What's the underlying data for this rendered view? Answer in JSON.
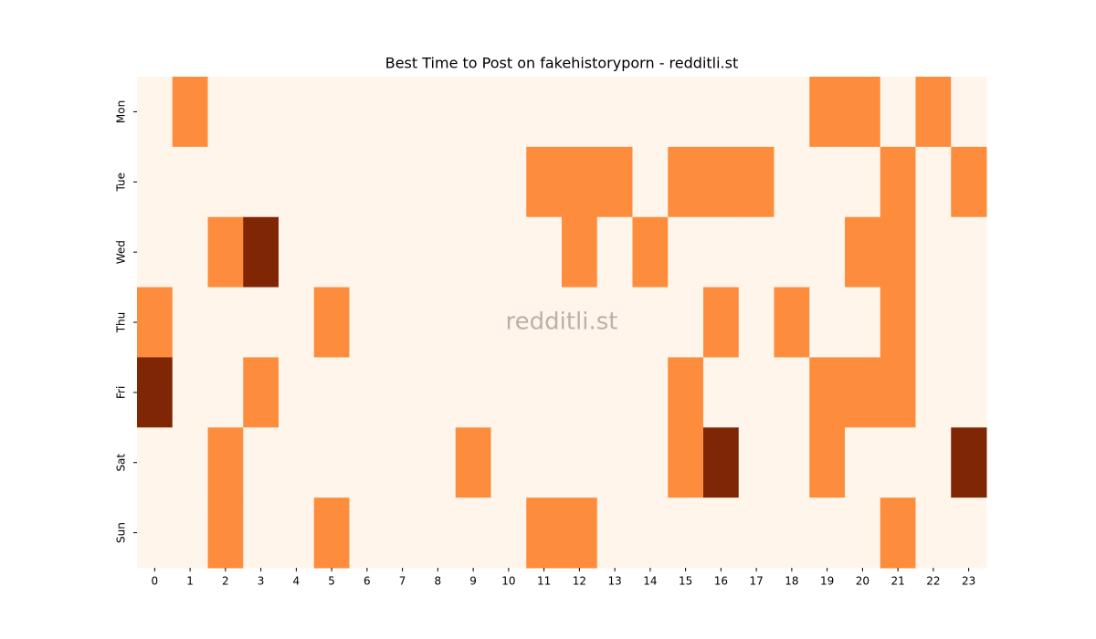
{
  "chart_data": {
    "type": "heatmap",
    "title": "Best Time to Post on fakehistoryporn - redditli.st",
    "watermark": "redditli.st",
    "x": [
      "0",
      "1",
      "2",
      "3",
      "4",
      "5",
      "6",
      "7",
      "8",
      "9",
      "10",
      "11",
      "12",
      "13",
      "14",
      "15",
      "16",
      "17",
      "18",
      "19",
      "20",
      "21",
      "22",
      "23"
    ],
    "y": [
      "Mon",
      "Tue",
      "Wed",
      "Thu",
      "Fri",
      "Sat",
      "Sun"
    ],
    "values": [
      [
        0,
        1,
        0,
        0,
        0,
        0,
        0,
        0,
        0,
        0,
        0,
        0,
        0,
        0,
        0,
        0,
        0,
        0,
        0,
        1,
        1,
        0,
        1,
        0
      ],
      [
        0,
        0,
        0,
        0,
        0,
        0,
        0,
        0,
        0,
        0,
        0,
        1,
        1,
        1,
        0,
        1,
        1,
        1,
        0,
        0,
        0,
        1,
        0,
        1
      ],
      [
        0,
        0,
        1,
        2,
        0,
        0,
        0,
        0,
        0,
        0,
        0,
        0,
        1,
        0,
        1,
        0,
        0,
        0,
        0,
        0,
        1,
        1,
        0,
        0
      ],
      [
        1,
        0,
        0,
        0,
        0,
        1,
        0,
        0,
        0,
        0,
        0,
        0,
        0,
        0,
        0,
        0,
        1,
        0,
        1,
        0,
        0,
        1,
        0,
        0
      ],
      [
        2,
        0,
        0,
        1,
        0,
        0,
        0,
        0,
        0,
        0,
        0,
        0,
        0,
        0,
        0,
        1,
        0,
        0,
        0,
        1,
        1,
        1,
        0,
        0
      ],
      [
        0,
        0,
        1,
        0,
        0,
        0,
        0,
        0,
        0,
        1,
        0,
        0,
        0,
        0,
        0,
        1,
        2,
        0,
        0,
        1,
        0,
        0,
        0,
        2
      ],
      [
        0,
        0,
        1,
        0,
        0,
        1,
        0,
        0,
        0,
        0,
        0,
        1,
        1,
        0,
        0,
        0,
        0,
        0,
        0,
        0,
        0,
        1,
        0,
        0
      ]
    ],
    "vlim": [
      0,
      2
    ],
    "cmap": [
      "#fff5eb",
      "#fd8d3c",
      "#7f2704"
    ]
  }
}
